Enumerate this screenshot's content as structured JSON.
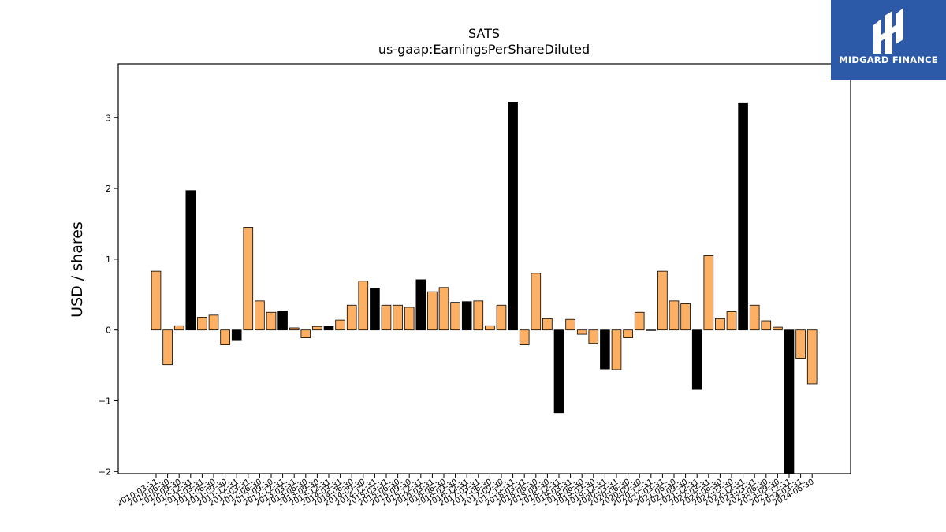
{
  "brand": {
    "name": "MIDGARD FINANCE",
    "logo_icon": "midgard-logo-icon",
    "color": "#2d5aa8"
  },
  "chart_data": {
    "type": "bar",
    "title": "SATS",
    "subtitle": "us-gaap:EarningsPerShareDiluted",
    "xlabel": "",
    "ylabel": "USD / shares",
    "ylim": [
      -2.03,
      3.76
    ],
    "yticks": [
      -2,
      -1,
      0,
      1,
      2,
      3
    ],
    "grid": false,
    "colors": {
      "quarterly": "#fdb063",
      "annual": "#000000"
    },
    "categories": [
      "2010-03-31",
      "2010-06-30",
      "2010-09-30",
      "2010-12-31",
      "2011-03-31",
      "2011-06-30",
      "2011-09-30",
      "2011-12-31",
      "2012-03-31",
      "2012-06-30",
      "2012-09-30",
      "2012-12-31",
      "2013-03-31",
      "2013-06-30",
      "2013-09-30",
      "2013-12-31",
      "2014-03-31",
      "2014-06-30",
      "2014-09-30",
      "2014-12-31",
      "2015-03-31",
      "2015-06-30",
      "2015-09-30",
      "2015-12-31",
      "2016-03-31",
      "2016-06-30",
      "2016-09-30",
      "2016-12-31",
      "2017-03-31",
      "2017-06-30",
      "2017-09-30",
      "2017-12-31",
      "2018-03-31",
      "2018-06-30",
      "2018-09-30",
      "2018-12-31",
      "2019-03-31",
      "2019-06-30",
      "2019-09-30",
      "2019-12-31",
      "2020-03-31",
      "2020-06-30",
      "2020-09-30",
      "2020-12-31",
      "2021-03-31",
      "2021-06-30",
      "2021-09-30",
      "2021-12-31",
      "2022-03-31",
      "2022-06-30",
      "2022-09-30",
      "2022-12-31",
      "2023-03-31",
      "2023-06-30",
      "2023-09-30",
      "2023-12-31",
      "2024-03-31",
      "2024-06-30"
    ],
    "values": [
      0.83,
      -0.49,
      0.06,
      1.97,
      0.18,
      0.21,
      -0.21,
      -0.15,
      1.45,
      0.41,
      0.25,
      0.27,
      0.03,
      -0.11,
      0.05,
      0.05,
      0.14,
      0.35,
      0.69,
      0.59,
      0.35,
      0.35,
      0.32,
      0.71,
      0.54,
      0.6,
      0.39,
      0.4,
      0.41,
      0.06,
      0.35,
      3.22,
      -0.21,
      0.8,
      0.16,
      -1.17,
      0.15,
      -0.06,
      -0.19,
      -0.55,
      -0.56,
      -0.11,
      0.25,
      0.0,
      0.83,
      0.41,
      0.37,
      -0.84,
      1.05,
      0.16,
      0.26,
      3.2,
      0.35,
      0.13,
      0.04,
      -2.03,
      -0.4,
      -0.76
    ],
    "annual": [
      false,
      false,
      false,
      true,
      false,
      false,
      false,
      true,
      false,
      false,
      false,
      true,
      false,
      false,
      false,
      true,
      false,
      false,
      false,
      true,
      false,
      false,
      false,
      true,
      false,
      false,
      false,
      true,
      false,
      false,
      false,
      true,
      false,
      false,
      false,
      true,
      false,
      false,
      false,
      true,
      false,
      false,
      false,
      true,
      false,
      false,
      false,
      true,
      false,
      false,
      false,
      true,
      false,
      false,
      false,
      true,
      false,
      false
    ]
  }
}
